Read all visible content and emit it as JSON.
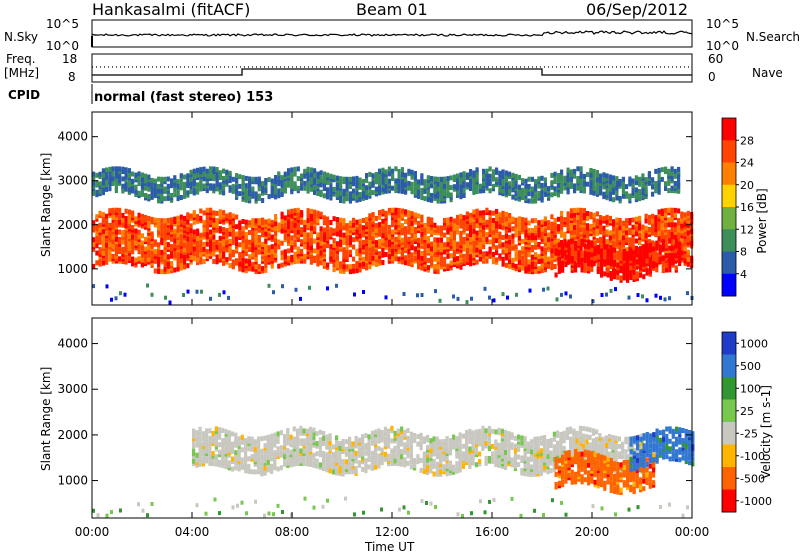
{
  "header": {
    "station": "Hankasalmi (fitACF)",
    "beam": "Beam 01",
    "date": "06/Sep/2012"
  },
  "noise_panel": {
    "left_label": "N.Sky",
    "right_label": "N.Search",
    "left_ticks": [
      "10^5",
      "10^0"
    ],
    "right_ticks": [
      "10^5",
      "10^0"
    ]
  },
  "freq_panel": {
    "left_label_1": "Freq.",
    "left_label_2": "[MHz]",
    "cpid_label": "CPID",
    "right_label": "Nave",
    "left_ticks": [
      "18",
      "8"
    ],
    "right_ticks": [
      "60",
      "0"
    ]
  },
  "cpid_text": "normal (fast stereo) 153",
  "chart_data": [
    {
      "type": "heatmap",
      "title": "Power",
      "ylabel": "Slant Range [km]",
      "y_ticks": [
        "4000",
        "3000",
        "2000",
        "1000"
      ],
      "ylim": [
        180,
        4560
      ],
      "x_ticks": [
        "00:00",
        "04:00",
        "08:00",
        "12:00",
        "16:00",
        "20:00",
        "00:00"
      ],
      "colorbar": {
        "label": "Power [dB]",
        "ticks": [
          "28",
          "24",
          "20",
          "16",
          "12",
          "8",
          "4"
        ],
        "colors": [
          "#ff0000",
          "#ff4500",
          "#ff8000",
          "#ffd200",
          "#70b040",
          "#3e8e5c",
          "#2c5ca8",
          "#0000ff"
        ]
      },
      "echo_bands": [
        {
          "t_start": 0,
          "t_end": 24,
          "range_km": [
            1000,
            2200
          ],
          "power_db": 24,
          "desc": "main echo band"
        },
        {
          "t_start": 18.5,
          "t_end": 23.5,
          "range_km": [
            800,
            1500
          ],
          "power_db": 28
        },
        {
          "t_start": 0,
          "t_end": 23.5,
          "range_km": [
            2600,
            3100
          ],
          "power_db": 6
        }
      ]
    },
    {
      "type": "heatmap",
      "title": "Velocity",
      "ylabel": "Slant Range [km]",
      "y_ticks": [
        "4000",
        "3000",
        "2000",
        "1000"
      ],
      "ylim": [
        180,
        4560
      ],
      "x_ticks": [
        "00:00",
        "04:00",
        "08:00",
        "12:00",
        "16:00",
        "20:00",
        "00:00"
      ],
      "xlabel": "Time UT",
      "colorbar": {
        "label": "Velocity [m s-1]",
        "ticks": [
          "1000",
          "500",
          "100",
          "25",
          "-25",
          "-100",
          "-500",
          "-1000"
        ],
        "colors": [
          "#1e3cc8",
          "#3278d2",
          "#329632",
          "#78c850",
          "#c8c8c0",
          "#ffb400",
          "#ff6400",
          "#ff0000"
        ]
      },
      "echo_bands": [
        {
          "t_start": 4,
          "t_end": 22,
          "range_km": [
            1200,
            2000
          ],
          "velocity_ms": 0,
          "desc": "ground scatter"
        },
        {
          "t_start": 18.5,
          "t_end": 22.5,
          "range_km": [
            800,
            1500
          ],
          "velocity_ms": -300
        },
        {
          "t_start": 21.5,
          "t_end": 24,
          "range_km": [
            1300,
            2000
          ],
          "velocity_ms": 600
        }
      ]
    }
  ]
}
